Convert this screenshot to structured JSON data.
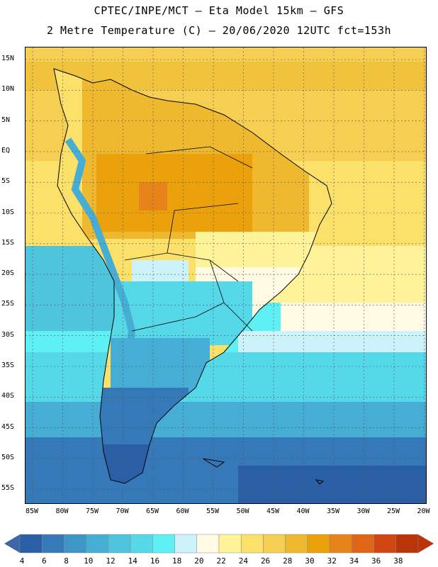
{
  "header": {
    "line1": "CPTEC/INPE/MCT –  Eta Model 15km – GFS",
    "line2": "2 Metre Temperature (C) – 20/06/2020 12UTC fct=153h"
  },
  "map": {
    "lat_labels": [
      "15N",
      "10N",
      "5N",
      "EQ",
      "5S",
      "10S",
      "15S",
      "20S",
      "25S",
      "30S",
      "35S",
      "40S",
      "45S",
      "50S",
      "55S"
    ],
    "lon_labels": [
      "85W",
      "80W",
      "75W",
      "70W",
      "65W",
      "60W",
      "55W",
      "50W",
      "45W",
      "40W",
      "35W",
      "30W",
      "25W",
      "20W"
    ],
    "lat_range": [
      -57,
      17
    ],
    "lon_range": [
      -86,
      -20
    ]
  },
  "colorbar": {
    "labels": [
      "4",
      "6",
      "8",
      "10",
      "12",
      "14",
      "16",
      "18",
      "20",
      "22",
      "24",
      "26",
      "28",
      "30",
      "32",
      "34",
      "36",
      "38"
    ],
    "colors": [
      "#2b5fa5",
      "#3579b9",
      "#3e95c6",
      "#46aed4",
      "#4fc5dd",
      "#55d9e8",
      "#5ef0f4",
      "#ccf3f9",
      "#fffae4",
      "#fff39a",
      "#fbe06a",
      "#f6cf52",
      "#efb92f",
      "#eaa10b",
      "#e68419",
      "#e06514",
      "#d14612",
      "#b93409"
    ],
    "low_end_color": "#3e67a8",
    "high_end_color": "#b93409"
  }
}
